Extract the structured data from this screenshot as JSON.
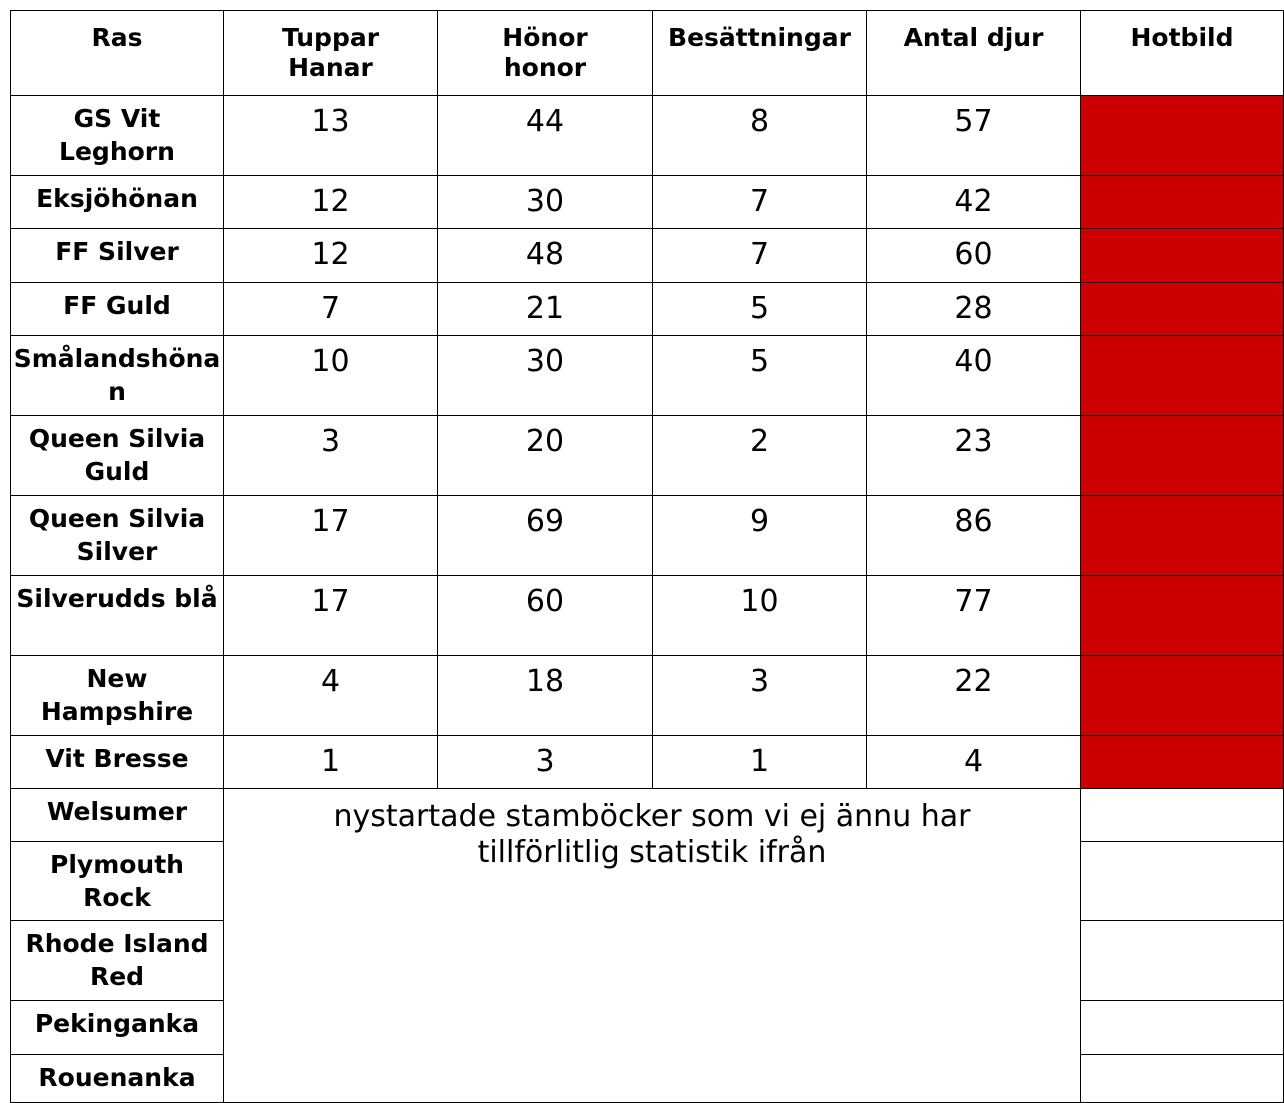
{
  "table": {
    "header": [
      "Ras",
      "Tuppar\nHanar",
      "Hönor\nhonor",
      "Besättningar",
      "Antal djur",
      "Hotbild"
    ],
    "rows": [
      [
        "GS Vit Leghorn",
        13,
        44,
        8,
        57
      ],
      [
        "Eksjöhönan",
        12,
        30,
        7,
        42
      ],
      [
        "FF Silver",
        12,
        48,
        7,
        60
      ],
      [
        "FF Guld",
        7,
        21,
        5,
        28
      ],
      [
        "Smålandshönan",
        10,
        30,
        5,
        40
      ],
      [
        "Queen Silvia Guld",
        3,
        20,
        2,
        23
      ],
      [
        "Queen Silvia Silver",
        17,
        69,
        9,
        86
      ],
      [
        "Silverudds blå",
        17,
        60,
        10,
        77
      ],
      [
        "New Hampshire",
        4,
        18,
        3,
        22
      ],
      [
        "Vit Bresse",
        1,
        3,
        1,
        4
      ]
    ],
    "new_rows": [
      "Welsumer",
      "Plymouth Rock",
      "Rhode Island Red",
      "Pekinganka",
      "Rouenanka"
    ],
    "note": "nystartade stamböcker som vi ej ännu har tillförlitlig statistik ifrån",
    "hotbild_color": "#cc0000"
  }
}
